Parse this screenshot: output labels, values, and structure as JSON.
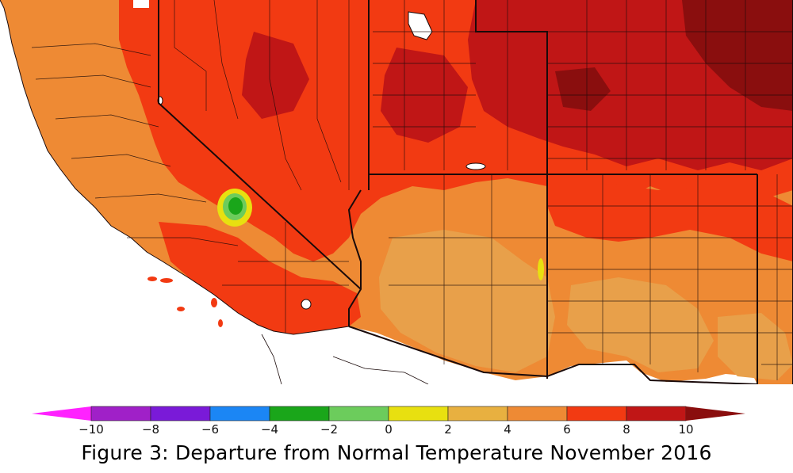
{
  "map": {
    "palette": {
      "ocean": "#ffffff",
      "anomaly_0_2": "#e8d02a",
      "anomaly_2_4": "#e8a04a",
      "anomaly_4_6": "#ee8a34",
      "anomaly_6_8": "#f23a12",
      "anomaly_8_10": "#c01616",
      "anomaly_gt_10": "#8a0e0e",
      "anomaly_neg_2_0": "#6ccc5c",
      "anomaly_neg_4_neg_2": "#1aa61a",
      "boundary_line": "#1a0a0a"
    }
  },
  "legend": {
    "units_note": "",
    "labels": [
      "−10",
      "−8",
      "−6",
      "−4",
      "−2",
      "0",
      "2",
      "4",
      "6",
      "8",
      "10"
    ],
    "bins": [
      {
        "range": "< -10",
        "color": "#ff22ff"
      },
      {
        "range": "-10 to -8",
        "color": "#a020c8"
      },
      {
        "range": "-8 to -6",
        "color": "#7a1ad8"
      },
      {
        "range": "-6 to -4",
        "color": "#1b86f5"
      },
      {
        "range": "-4 to -2",
        "color": "#1aa61a"
      },
      {
        "range": "-2 to 0",
        "color": "#6ccc5c"
      },
      {
        "range": "0 to 2",
        "color": "#e8e010"
      },
      {
        "range": "2 to 4",
        "color": "#e8b040"
      },
      {
        "range": "4 to 6",
        "color": "#ee8a34"
      },
      {
        "range": "6 to 8",
        "color": "#f23a12"
      },
      {
        "range": "8 to 10",
        "color": "#c01616"
      },
      {
        "range": "> 10",
        "color": "#8a0e0e"
      }
    ]
  },
  "caption": {
    "text": "Figure 3: Departure from Normal Temperature November 2016"
  }
}
